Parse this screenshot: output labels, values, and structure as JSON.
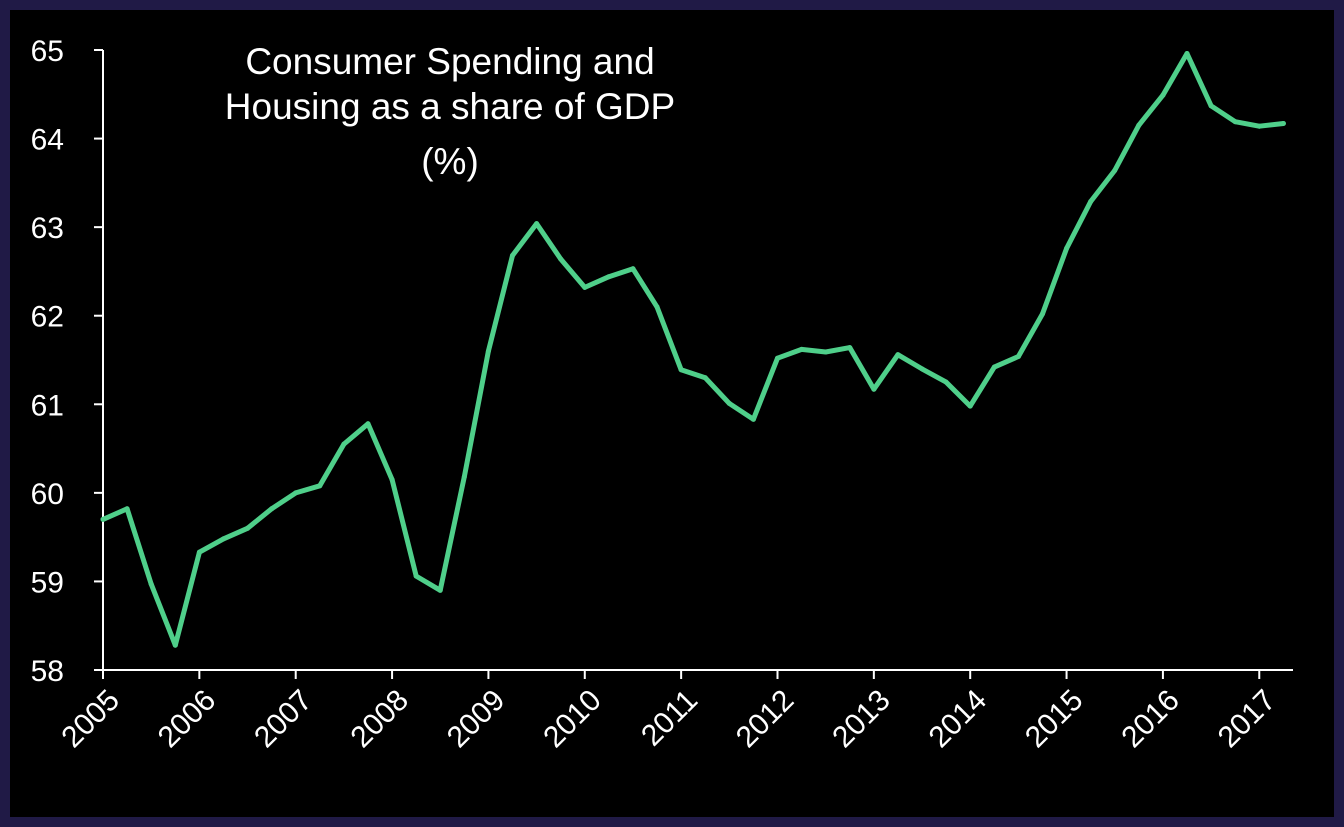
{
  "chart_data": {
    "type": "line",
    "title_lines": [
      "Consumer Spending and",
      "Housing as a share of GDP",
      "(%)"
    ],
    "xlabel": "",
    "ylabel": "",
    "ylim": [
      58,
      65
    ],
    "xlim": [
      2005,
      2017.35
    ],
    "y_ticks": [
      "58",
      "59",
      "60",
      "61",
      "62",
      "63",
      "64",
      "65"
    ],
    "x_ticks": [
      "2005",
      "2006",
      "2007",
      "2008",
      "2009",
      "2010",
      "2011",
      "2012",
      "2013",
      "2014",
      "2015",
      "2016",
      "2017"
    ],
    "grid": false,
    "legend": "none",
    "line_color": "#4fcf8a",
    "series": [
      {
        "x": [
          2005.0,
          2005.25,
          2005.5,
          2005.75,
          2006.0,
          2006.25,
          2006.5,
          2006.75,
          2007.0,
          2007.25,
          2007.5,
          2007.75,
          2008.0,
          2008.25,
          2008.5,
          2008.75,
          2009.0,
          2009.25,
          2009.5,
          2009.75,
          2010.0,
          2010.25,
          2010.5,
          2010.75,
          2011.0,
          2011.25,
          2011.5,
          2011.75,
          2012.0,
          2012.25,
          2012.5,
          2012.75,
          2013.0,
          2013.25,
          2013.5,
          2013.75,
          2014.0,
          2014.25,
          2014.5,
          2014.75,
          2015.0,
          2015.25,
          2015.5,
          2015.75,
          2016.0,
          2016.25,
          2016.5,
          2016.75,
          2017.0,
          2017.25
        ],
        "values": [
          59.7,
          59.82,
          58.97,
          58.28,
          59.33,
          59.48,
          59.6,
          59.82,
          60.0,
          60.08,
          60.55,
          60.78,
          60.15,
          59.06,
          58.9,
          60.18,
          61.6,
          62.68,
          63.04,
          62.64,
          62.32,
          62.44,
          62.53,
          62.1,
          61.39,
          61.3,
          61.01,
          60.83,
          61.52,
          61.62,
          61.59,
          61.64,
          61.17,
          61.56,
          61.4,
          61.25,
          60.98,
          61.42,
          61.54,
          62.02,
          62.76,
          63.29,
          63.64,
          64.15,
          64.49,
          64.96,
          64.37,
          64.19,
          64.14,
          64.17
        ]
      }
    ]
  }
}
